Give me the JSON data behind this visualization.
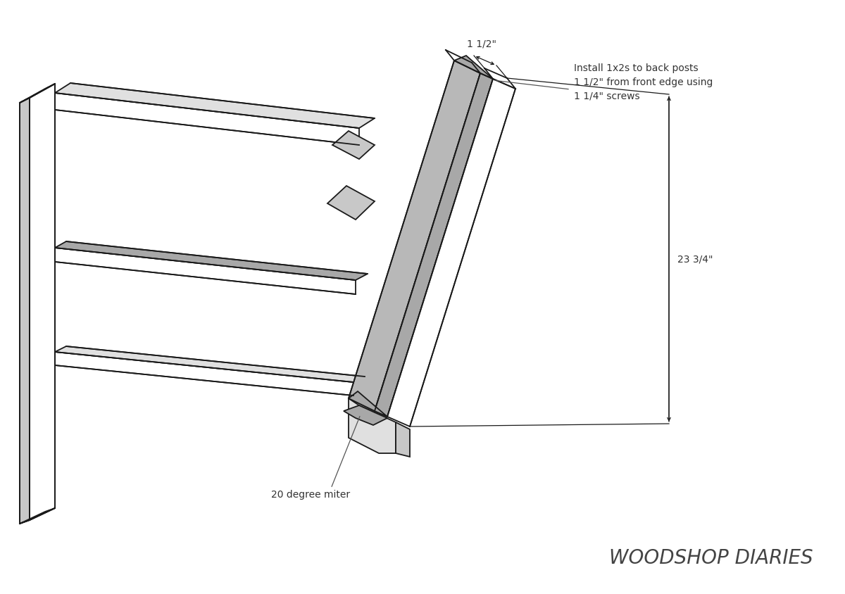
{
  "bg_color": "#ffffff",
  "line_color": "#1a1a1a",
  "gray_fill": "#c8c8c8",
  "light_gray_fill": "#e0e0e0",
  "white_fill": "#ffffff",
  "cyan_fill": "#7dd8d8",
  "dark_gray_fill": "#a8a8a8",
  "med_gray_fill": "#b8b8b8",
  "title": "WOODSHOP DIARIES",
  "annotation1": "Install 1x2s to back posts\n1 1/2\" from front edge using\n1 1/4\" screws",
  "annotation2": "20 degree miter",
  "dim_label1": "1 1/2\"",
  "dim_label2": "23 3/4\"",
  "font_size_title": 20,
  "font_size_annot": 10,
  "font_size_dim": 10
}
